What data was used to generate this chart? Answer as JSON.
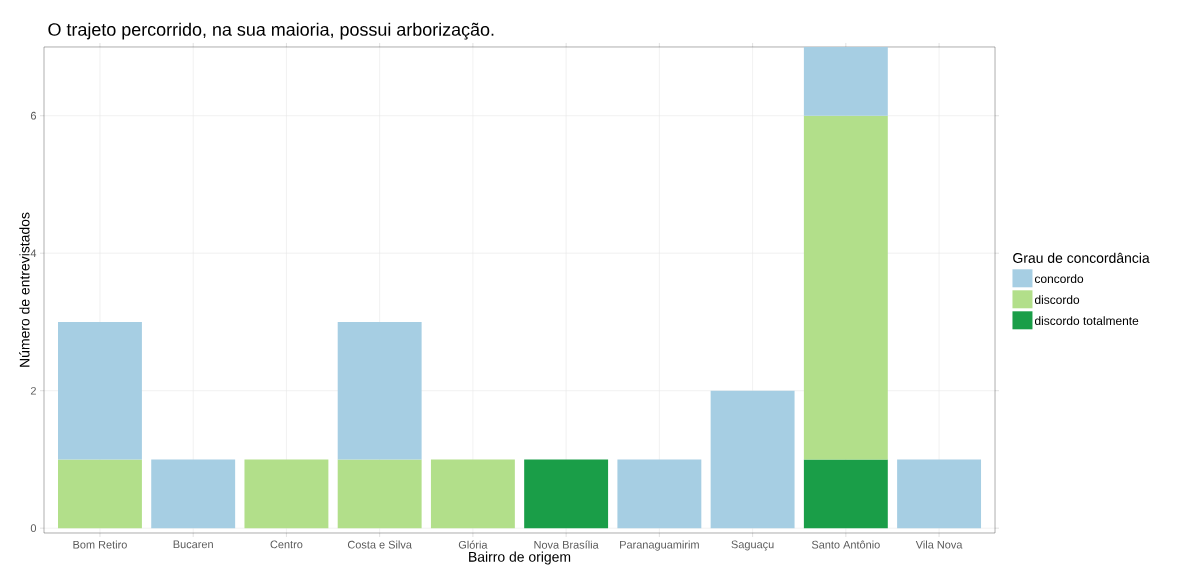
{
  "chart_data": {
    "type": "bar",
    "stacked": true,
    "title": "O trajeto percorrido, na sua maioria, possui arborização.",
    "xlabel": "Bairro de origem",
    "ylabel": "Número de entrevistados",
    "legend_title": "Grau de concordância",
    "legend": "right",
    "grid": true,
    "categories": [
      "Bom Retiro",
      "Bucaren",
      "Centro",
      "Costa e Silva",
      "Glória",
      "Nova Brasília",
      "Paranaguamirim",
      "Saguaçu",
      "Santo Antônio",
      "Vila Nova"
    ],
    "series": [
      {
        "name": "discordo totalmente",
        "color": "#1a9e48",
        "values": [
          0,
          0,
          0,
          0,
          0,
          1,
          0,
          0,
          1,
          0
        ]
      },
      {
        "name": "discordo",
        "color": "#b2df8a",
        "values": [
          1,
          0,
          1,
          1,
          1,
          0,
          0,
          0,
          5,
          0
        ]
      },
      {
        "name": "concordo",
        "color": "#a6cee3",
        "values": [
          2,
          1,
          0,
          2,
          0,
          0,
          1,
          2,
          1,
          1
        ]
      }
    ],
    "ylim": [
      -0.07,
      7
    ],
    "yticks": [
      0,
      2,
      4,
      6
    ]
  }
}
